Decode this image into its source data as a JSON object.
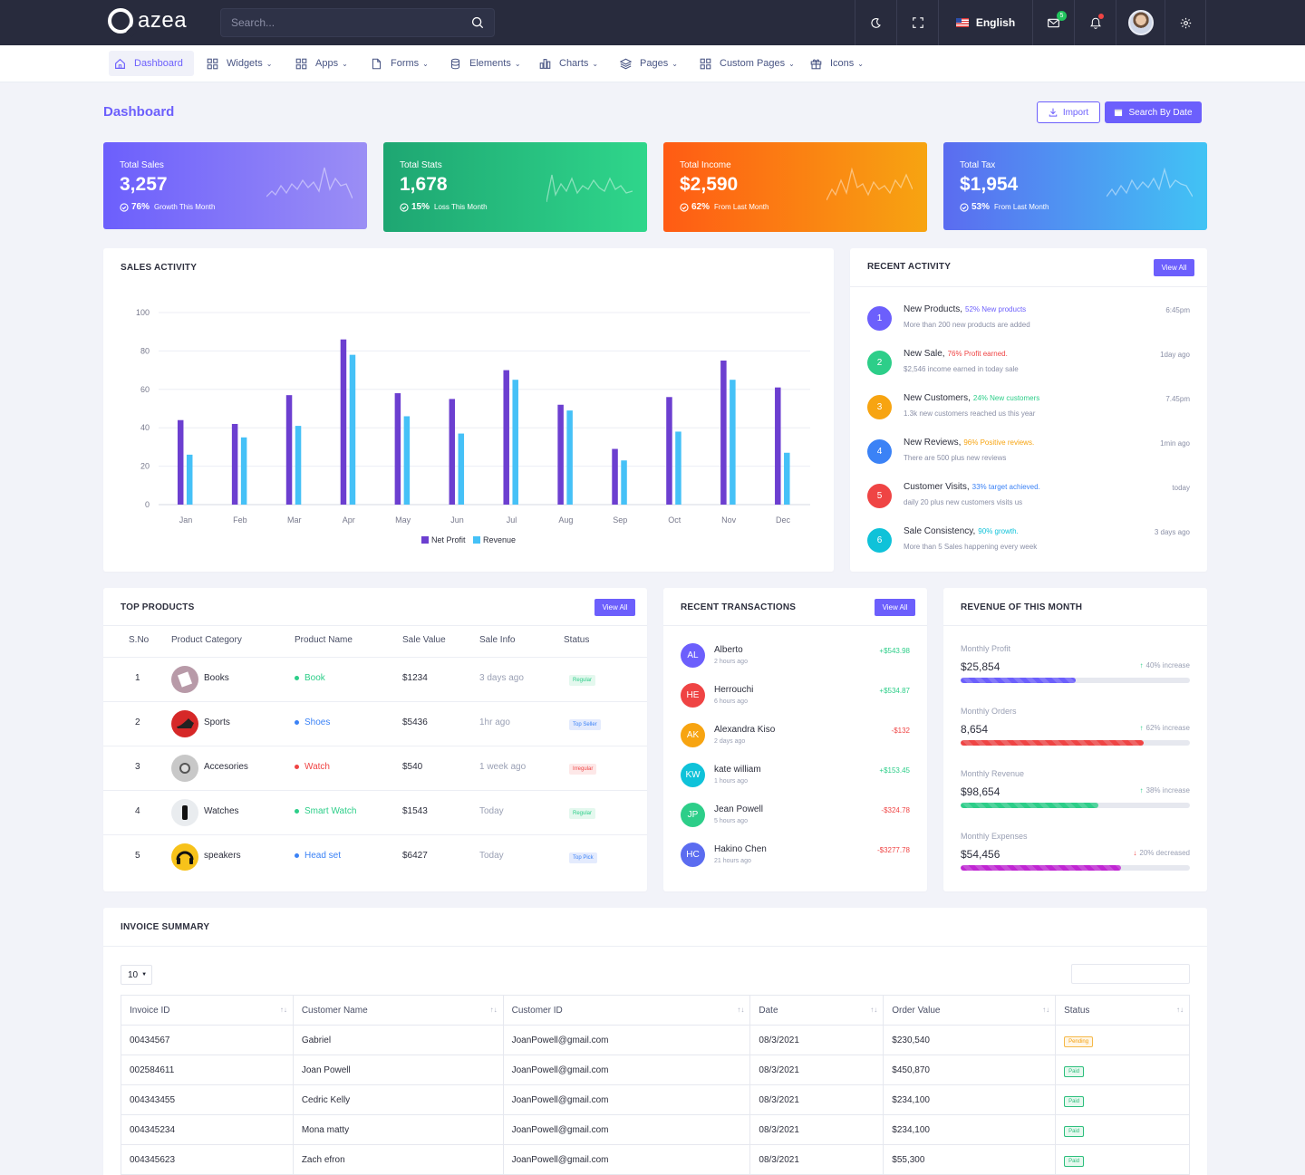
{
  "header": {
    "logo_text": "azea",
    "search_placeholder": "Search...",
    "language": "English",
    "mail_badge": "5"
  },
  "nav": [
    {
      "label": "Dashboard",
      "icon": "home-icon"
    },
    {
      "label": "Widgets",
      "icon": "grid-icon"
    },
    {
      "label": "Apps",
      "icon": "grid-icon"
    },
    {
      "label": "Forms",
      "icon": "file-icon"
    },
    {
      "label": "Elements",
      "icon": "database-icon"
    },
    {
      "label": "Charts",
      "icon": "bar-chart-icon"
    },
    {
      "label": "Pages",
      "icon": "layers-icon"
    },
    {
      "label": "Custom Pages",
      "icon": "grid-icon"
    },
    {
      "label": "Icons",
      "icon": "gift-icon"
    }
  ],
  "page": {
    "title": "Dashboard",
    "import_label": "Import",
    "search_by_date_label": "Search By Date"
  },
  "stats": [
    {
      "label": "Total Sales",
      "value": "3,257",
      "pct": "76%",
      "note": "Growth This Month",
      "colors": [
        "#6c5ffc",
        "#9b8ef5"
      ]
    },
    {
      "label": "Total Stats",
      "value": "1,678",
      "pct": "15%",
      "note": "Loss This Month",
      "colors": [
        "#1ea672",
        "#2fd68b"
      ]
    },
    {
      "label": "Total Income",
      "value": "$2,590",
      "pct": "62%",
      "note": "From Last Month",
      "colors": [
        "#ff5b14",
        "#f7a411"
      ]
    },
    {
      "label": "Total Tax",
      "value": "$1,954",
      "pct": "53%",
      "note": "From Last Month",
      "colors": [
        "#5b6cf0",
        "#41c3f4"
      ]
    }
  ],
  "sales_activity": {
    "title": "SALES ACTIVITY"
  },
  "chart_data": {
    "type": "bar",
    "categories": [
      "Jan",
      "Feb",
      "Mar",
      "Apr",
      "May",
      "Jun",
      "Jul",
      "Aug",
      "Sep",
      "Oct",
      "Nov",
      "Dec"
    ],
    "series": [
      {
        "name": "Net Profit",
        "color": "#6c3fd0",
        "values": [
          44,
          42,
          57,
          86,
          58,
          55,
          70,
          52,
          29,
          56,
          75,
          61
        ]
      },
      {
        "name": "Revenue",
        "color": "#45c1f7",
        "values": [
          26,
          35,
          41,
          78,
          46,
          37,
          65,
          49,
          23,
          38,
          65,
          27
        ]
      }
    ],
    "yticks": [
      0,
      20,
      40,
      60,
      80,
      100
    ],
    "ylim": [
      0,
      100
    ],
    "legend": "bottom"
  },
  "recent_activity": {
    "title": "RECENT ACTIVITY",
    "view_all": "View All",
    "items": [
      {
        "num": "1",
        "color": "#6c5ffc",
        "title": "New Products,",
        "highlight": "52% New products",
        "hl_color": "#6c5ffc",
        "desc": "More than 200 new products are added",
        "time": "6:45pm"
      },
      {
        "num": "2",
        "color": "#2dce89",
        "title": "New Sale,",
        "highlight": "76% Profit earned.",
        "hl_color": "#ef4444",
        "desc": "$2,546 income earned in today sale",
        "time": "1day ago"
      },
      {
        "num": "3",
        "color": "#f7a411",
        "title": "New Customers,",
        "highlight": "24% New customers",
        "hl_color": "#2dce89",
        "desc": "1.3k new customers reached us this year",
        "time": "7.45pm"
      },
      {
        "num": "4",
        "color": "#3b82f6",
        "title": "New Reviews,",
        "highlight": "96% Positive reviews.",
        "hl_color": "#f7a411",
        "desc": "There are 500 plus new reviews",
        "time": "1min ago"
      },
      {
        "num": "5",
        "color": "#ef4444",
        "title": "Customer Visits,",
        "highlight": "33% target achieved.",
        "hl_color": "#3b82f6",
        "desc": "daily 20 plus new customers visits us",
        "time": "today"
      },
      {
        "num": "6",
        "color": "#0fc2d9",
        "title": "Sale Consistency,",
        "highlight": "90% growth.",
        "hl_color": "#0fc2d9",
        "desc": "More than 5 Sales happening every week",
        "time": "3 days ago"
      }
    ]
  },
  "top_products": {
    "title": "TOP PRODUCTS",
    "view_all": "View All",
    "columns": [
      "S.No",
      "Product Category",
      "Product Name",
      "Sale Value",
      "Sale Info",
      "Status"
    ],
    "rows": [
      {
        "sno": "1",
        "category": "Books",
        "name": "Book",
        "dot": "#2dce89",
        "name_color": "#2dce89",
        "value": "$1234",
        "info": "3 days ago",
        "status": "Regular",
        "status_bg": "#e4f8ee",
        "status_fg": "#2dce89",
        "img_bg": "#b89aa8",
        "icon": "book-icon"
      },
      {
        "sno": "2",
        "category": "Sports",
        "name": "Shoes",
        "dot": "#3b82f6",
        "name_color": "#3b82f6",
        "value": "$5436",
        "info": "1hr ago",
        "status": "Top Seller",
        "status_bg": "#e4ebfd",
        "status_fg": "#3b82f6",
        "img_bg": "#d62828",
        "icon": "shoe-icon"
      },
      {
        "sno": "3",
        "category": "Accesories",
        "name": "Watch",
        "dot": "#ef4444",
        "name_color": "#ef4444",
        "value": "$540",
        "info": "1 week ago",
        "status": "Irregular",
        "status_bg": "#fde8e8",
        "status_fg": "#ef4444",
        "img_bg": "#c8c8c8",
        "icon": "watch-icon"
      },
      {
        "sno": "4",
        "category": "Watches",
        "name": "Smart Watch",
        "dot": "#2dce89",
        "name_color": "#2dce89",
        "value": "$1543",
        "info": "Today",
        "status": "Regular",
        "status_bg": "#e4f8ee",
        "status_fg": "#2dce89",
        "img_bg": "#e9ecef",
        "icon": "smartwatch-icon"
      },
      {
        "sno": "5",
        "category": "speakers",
        "name": "Head set",
        "dot": "#3b82f6",
        "name_color": "#3b82f6",
        "value": "$6427",
        "info": "Today",
        "status": "Top Pick",
        "status_bg": "#e4ebfd",
        "status_fg": "#3b82f6",
        "img_bg": "#f7c21a",
        "icon": "headset-icon"
      }
    ]
  },
  "transactions": {
    "title": "RECENT TRANSACTIONS",
    "view_all": "View All",
    "items": [
      {
        "initials": "AL",
        "color": "#6c5ffc",
        "name": "Alberto",
        "time": "2 hours ago",
        "amount": "+$543.98",
        "amt_color": "#2dce89"
      },
      {
        "initials": "HE",
        "color": "#ef4444",
        "name": "Herrouchi",
        "time": "6 hours ago",
        "amount": "+$534.87",
        "amt_color": "#2dce89"
      },
      {
        "initials": "AK",
        "color": "#f7a411",
        "name": "Alexandra Kiso",
        "time": "2 days ago",
        "amount": "-$132",
        "amt_color": "#ef4444"
      },
      {
        "initials": "KW",
        "color": "#0fc2d9",
        "name": "kate william",
        "time": "1 hours ago",
        "amount": "+$153.45",
        "amt_color": "#2dce89"
      },
      {
        "initials": "JP",
        "color": "#2dce89",
        "name": "Jean Powell",
        "time": "5 hours ago",
        "amount": "-$324.78",
        "amt_color": "#ef4444"
      },
      {
        "initials": "HC",
        "color": "#5b6cf0",
        "name": "Hakino Chen",
        "time": "21 hours ago",
        "amount": "-$3277.78",
        "amt_color": "#ef4444"
      }
    ]
  },
  "revenue": {
    "title": "REVENUE OF THIS MONTH",
    "items": [
      {
        "label": "Monthly Profit",
        "value": "$25,854",
        "change": "40% increase",
        "arrow": "↑",
        "arrow_color": "#2dce89",
        "progress": 0.5,
        "bar": "#6c5ffc"
      },
      {
        "label": "Monthly Orders",
        "value": "8,654",
        "change": "62% increase",
        "arrow": "↑",
        "arrow_color": "#2dce89",
        "progress": 0.8,
        "bar": "#ef4444"
      },
      {
        "label": "Monthly Revenue",
        "value": "$98,654",
        "change": "38% increase",
        "arrow": "↑",
        "arrow_color": "#2dce89",
        "progress": 0.6,
        "bar": "#2dce89"
      },
      {
        "label": "Monthly Expenses",
        "value": "$54,456",
        "change": "20% decreased",
        "arrow": "↓",
        "arrow_color": "#ef4444",
        "progress": 0.7,
        "bar": "#c026d3"
      }
    ]
  },
  "invoice": {
    "title": "INVOICE SUMMARY",
    "page_size": "10",
    "columns": [
      "Invoice ID",
      "Customer Name",
      "Customer ID",
      "Date",
      "Order Value",
      "Status"
    ],
    "rows": [
      {
        "id": "00434567",
        "name": "Gabriel",
        "cid": "JoanPowell@gmail.com",
        "date": "08/3/2021",
        "value": "$230,540",
        "status": "Pending"
      },
      {
        "id": "002584611",
        "name": "Joan Powell",
        "cid": "JoanPowell@gmail.com",
        "date": "08/3/2021",
        "value": "$450,870",
        "status": "Paid"
      },
      {
        "id": "004343455",
        "name": "Cedric Kelly",
        "cid": "JoanPowell@gmail.com",
        "date": "08/3/2021",
        "value": "$234,100",
        "status": "Paid"
      },
      {
        "id": "004345234",
        "name": "Mona matty",
        "cid": "JoanPowell@gmail.com",
        "date": "08/3/2021",
        "value": "$234,100",
        "status": "Paid"
      },
      {
        "id": "004345623",
        "name": "Zach efron",
        "cid": "JoanPowell@gmail.com",
        "date": "08/3/2021",
        "value": "$55,300",
        "status": "Paid"
      }
    ]
  }
}
